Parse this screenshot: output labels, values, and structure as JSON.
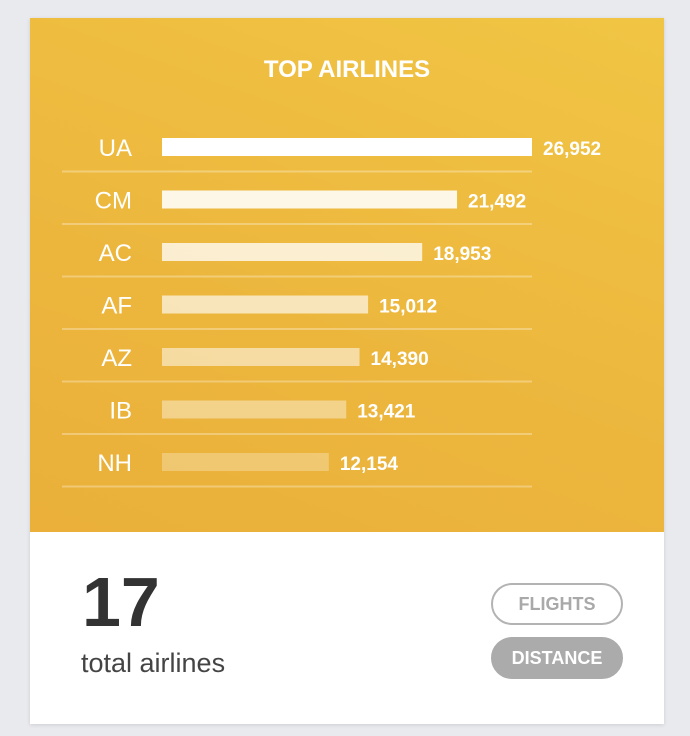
{
  "chart_data": {
    "type": "bar",
    "orientation": "horizontal",
    "title": "TOP AIRLINES",
    "categories": [
      "UA",
      "CM",
      "AC",
      "AF",
      "AZ",
      "IB",
      "NH"
    ],
    "values": [
      26952,
      21492,
      18953,
      15012,
      14390,
      13421,
      12154
    ],
    "value_labels": [
      "26,952",
      "21,492",
      "18,953",
      "15,012",
      "14,390",
      "13,421",
      "12,154"
    ],
    "bar_color": "#ffffff",
    "background_color": "#eeb83e",
    "grid": false
  },
  "summary": {
    "count": "17",
    "label": "total airlines"
  },
  "toggles": {
    "flights": "FLIGHTS",
    "distance": "DISTANCE",
    "active": "distance"
  }
}
